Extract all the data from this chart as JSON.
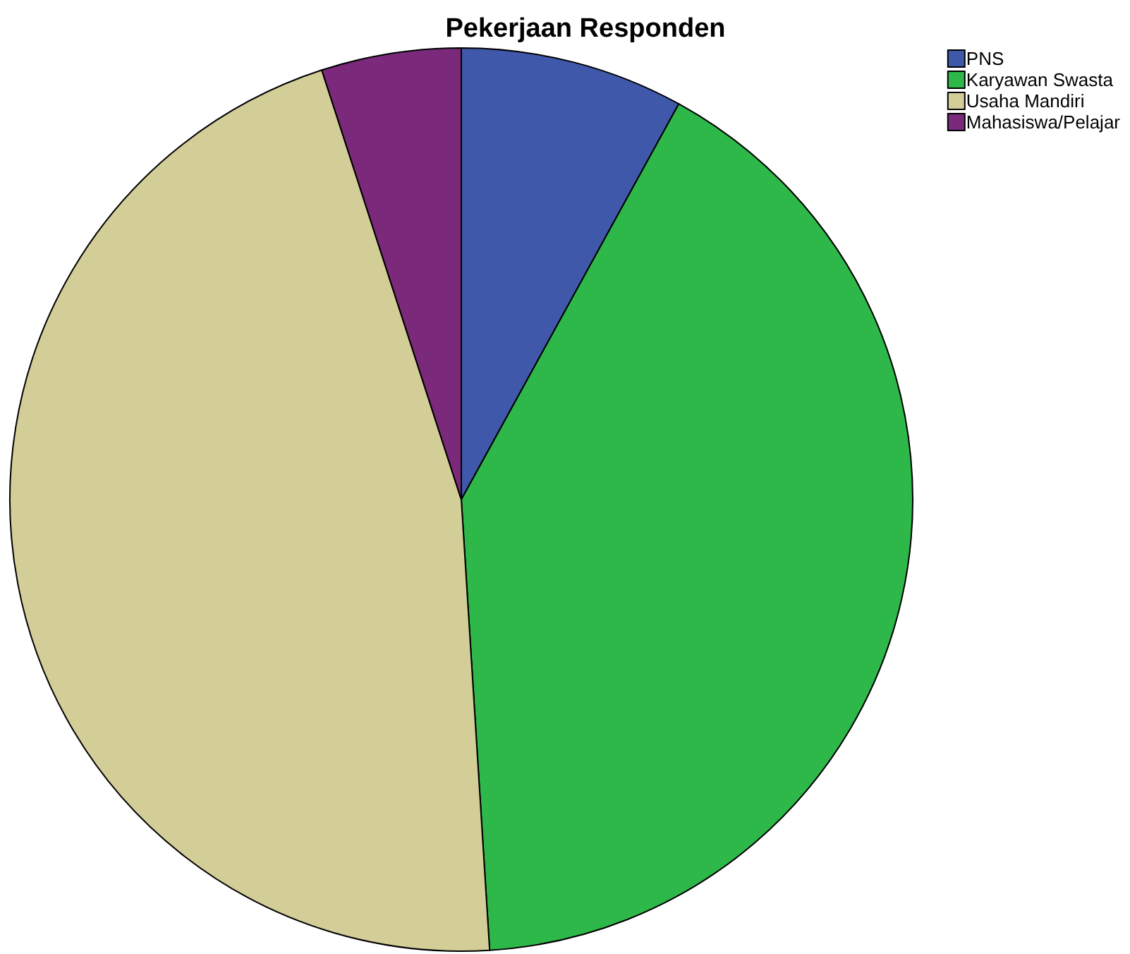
{
  "chart_data": {
    "type": "pie",
    "title": "Pekerjaan Responden",
    "categories": [
      "PNS",
      "Karyawan Swasta",
      "Usaha Mandiri",
      "Mahasiswa/Pelajar"
    ],
    "values": [
      8,
      41,
      46,
      5
    ],
    "colors": [
      "#3f58aa",
      "#2fb84a",
      "#d3cd98",
      "#7b2a7b"
    ],
    "legend": "top right"
  }
}
